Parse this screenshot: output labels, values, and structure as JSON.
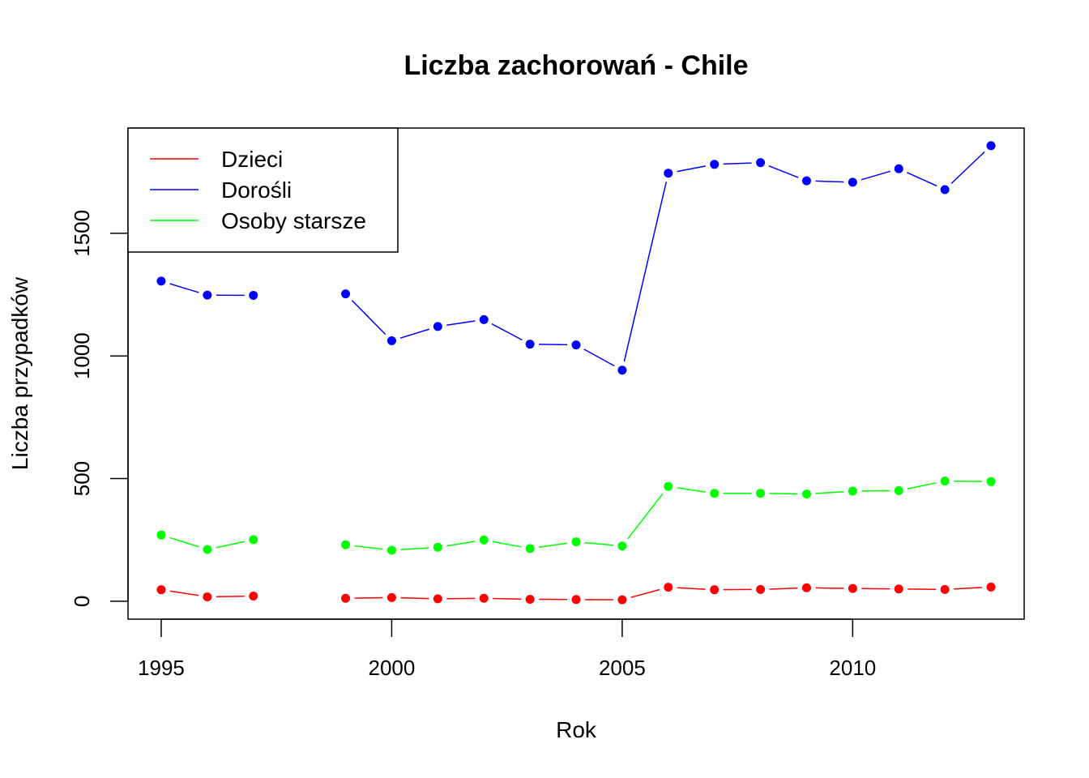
{
  "chart_data": {
    "type": "line",
    "title": "Liczba zachorowań -  Chile",
    "xlabel": "Rok",
    "ylabel": "Liczba przypadków",
    "x": [
      1995,
      1996,
      1997,
      1998,
      1999,
      2000,
      2001,
      2002,
      2003,
      2004,
      2005,
      2006,
      2007,
      2008,
      2009,
      2010,
      2011,
      2012,
      2013
    ],
    "xlim": [
      1994.28,
      2013.72
    ],
    "ylim": [
      -73,
      1929
    ],
    "xticks": [
      "1995",
      "2000",
      "2005",
      "2010"
    ],
    "yticks": [
      "0",
      "500",
      "1000",
      "1500"
    ],
    "legend_position": "top-left",
    "grid": false,
    "series": [
      {
        "name": "Dzieci",
        "color": "#ff0000",
        "values": [
          47,
          18,
          21,
          null,
          12,
          15,
          10,
          12,
          8,
          7,
          6,
          57,
          47,
          48,
          55,
          52,
          50,
          48,
          58
        ]
      },
      {
        "name": "Dorośli",
        "color": "#0000ff",
        "values": [
          1305,
          1248,
          1247,
          null,
          1253,
          1062,
          1120,
          1148,
          1048,
          1045,
          942,
          1745,
          1781,
          1788,
          1714,
          1708,
          1763,
          1678,
          1857
        ]
      },
      {
        "name": "Osoby starsze",
        "color": "#00ff00",
        "values": [
          270,
          211,
          251,
          null,
          230,
          208,
          220,
          250,
          215,
          242,
          225,
          468,
          440,
          440,
          437,
          449,
          451,
          490,
          488
        ]
      }
    ]
  }
}
